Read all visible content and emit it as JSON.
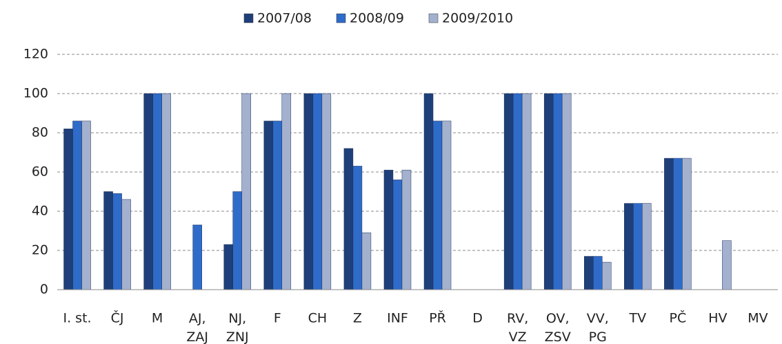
{
  "chart_data": {
    "type": "bar",
    "categories": [
      "I. st.",
      "ČJ",
      "M",
      "AJ, ZAJ",
      "NJ, ZNJ",
      "F",
      "CH",
      "Z",
      "INF",
      "PŘ",
      "D",
      "RV, VZ",
      "OV, ZSV",
      "VV, PG",
      "TV",
      "PČ",
      "HV",
      "MV"
    ],
    "series": [
      {
        "name": "2007/08",
        "color": "#1f3f7a",
        "values": [
          82,
          50,
          100,
          null,
          23,
          86,
          100,
          72,
          61,
          100,
          null,
          100,
          100,
          17,
          44,
          67,
          null,
          null
        ]
      },
      {
        "name": "2008/09",
        "color": "#2f6bc9",
        "values": [
          86,
          49,
          100,
          33,
          50,
          86,
          100,
          63,
          56,
          86,
          null,
          100,
          100,
          17,
          44,
          67,
          null,
          null
        ]
      },
      {
        "name": "2009/2010",
        "color": "#a3b1cf",
        "values": [
          86,
          46,
          100,
          null,
          100,
          100,
          100,
          29,
          61,
          86,
          null,
          100,
          100,
          14,
          44,
          67,
          25,
          null
        ]
      }
    ],
    "ylim": [
      0,
      120
    ],
    "yticks": [
      0,
      20,
      40,
      60,
      80,
      100,
      120
    ],
    "grid": true,
    "legend": "top"
  }
}
